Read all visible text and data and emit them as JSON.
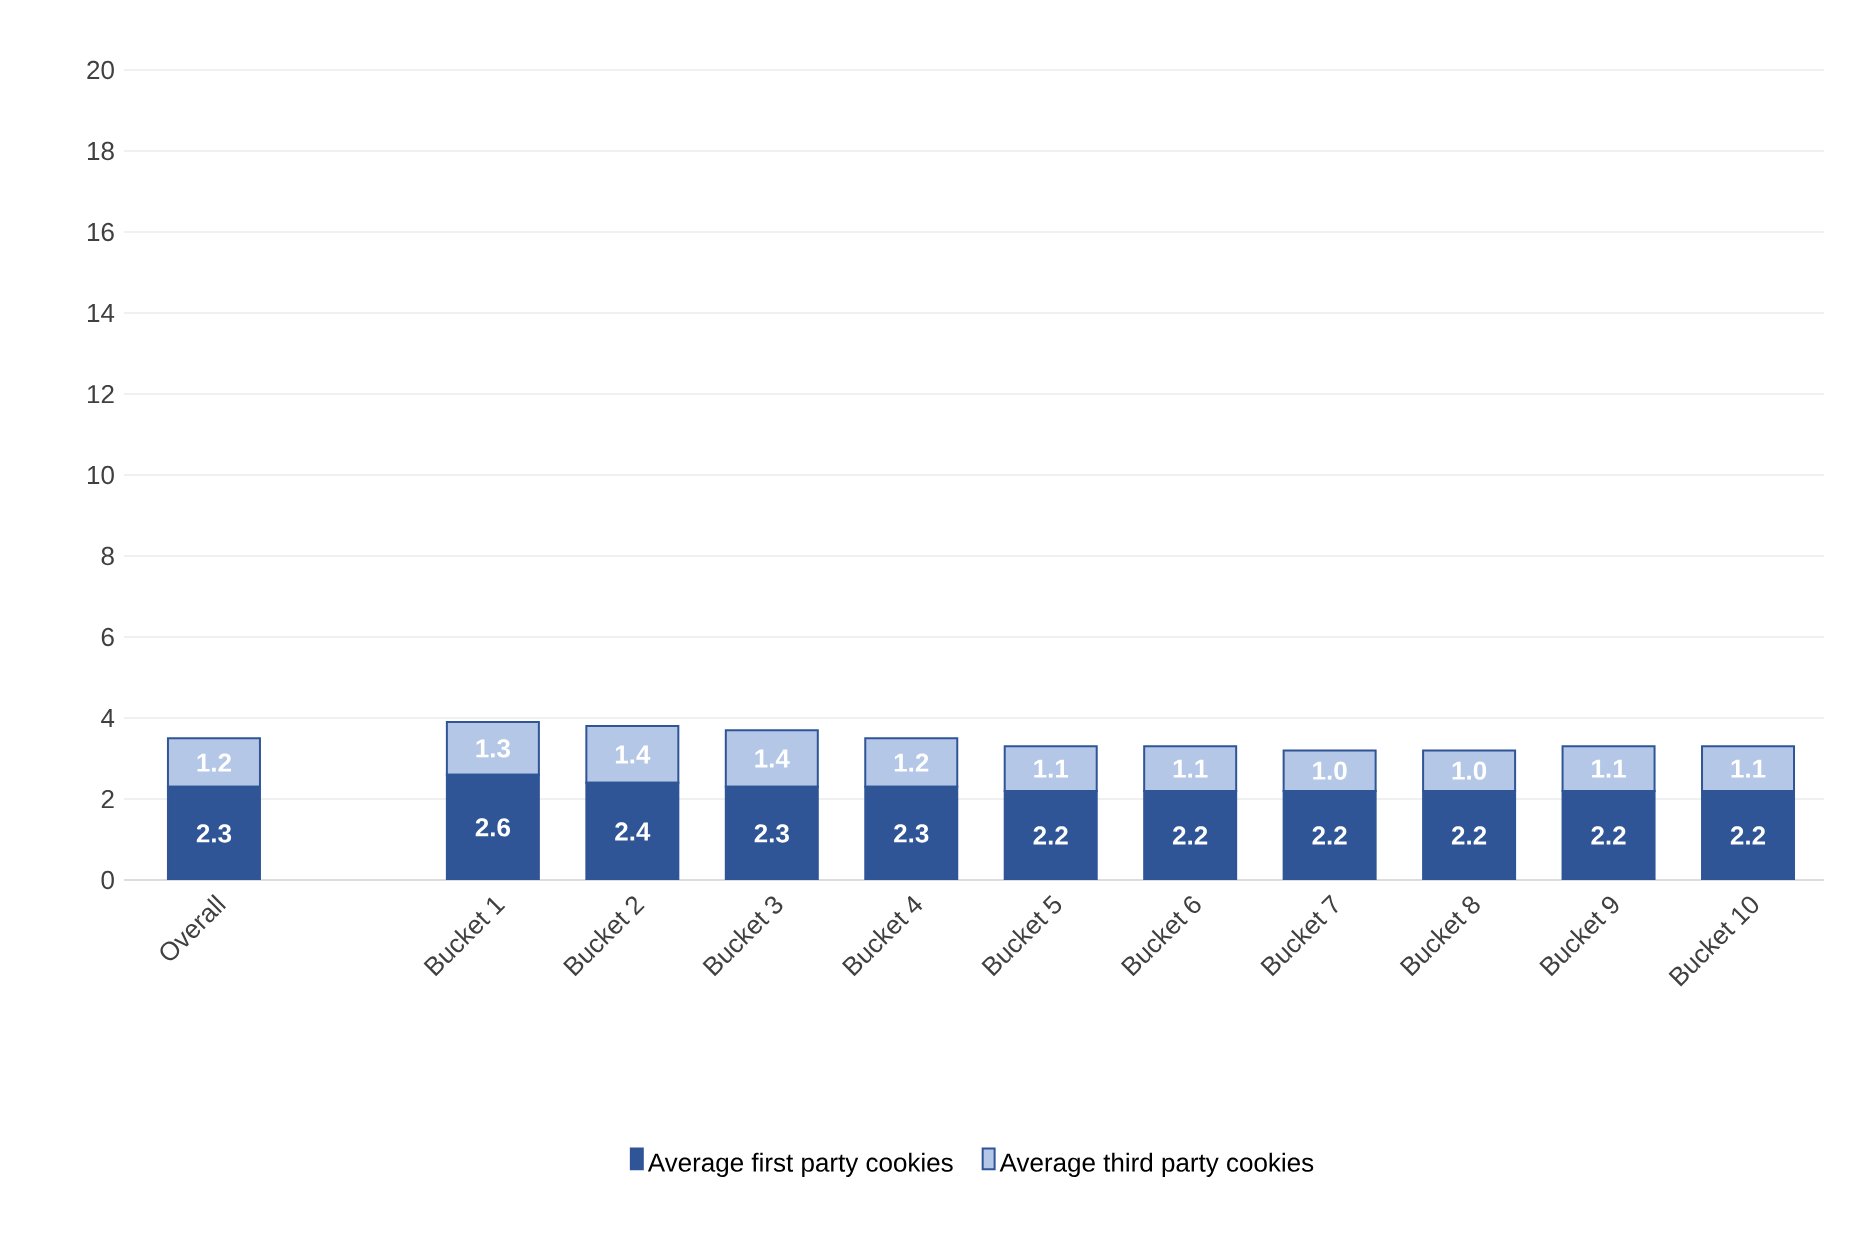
{
  "chart_data": {
    "type": "bar",
    "stacked": true,
    "categories": [
      "Overall",
      null,
      "Bucket 1",
      "Bucket 2",
      "Bucket 3",
      "Bucket 4",
      "Bucket 5",
      "Bucket 6",
      "Bucket 7",
      "Bucket 8",
      "Bucket 9",
      "Bucket 10"
    ],
    "series": [
      {
        "name": "Average first party cookies",
        "color": "#2f5597",
        "values": [
          2.3,
          null,
          2.6,
          2.4,
          2.3,
          2.3,
          2.2,
          2.2,
          2.2,
          2.2,
          2.2,
          2.2
        ],
        "value_labels": [
          "2.3",
          null,
          "2.6",
          "2.4",
          "2.3",
          "2.3",
          "2.2",
          "2.2",
          "2.2",
          "2.2",
          "2.2",
          "2.2"
        ]
      },
      {
        "name": "Average third party cookies",
        "color": "#b4c7e7",
        "values": [
          1.2,
          null,
          1.3,
          1.4,
          1.4,
          1.2,
          1.1,
          1.1,
          1.0,
          1.0,
          1.1,
          1.1
        ],
        "value_labels": [
          "1.2",
          null,
          "1.3",
          "1.4",
          "1.4",
          "1.2",
          "1.1",
          "1.1",
          "1.0",
          "1.0",
          "1.1",
          "1.1"
        ]
      }
    ],
    "ylim": [
      0,
      20
    ],
    "yticks": [
      0,
      2,
      4,
      6,
      8,
      10,
      12,
      14,
      16,
      18,
      20
    ],
    "grid": "y",
    "legend": "bottom"
  }
}
